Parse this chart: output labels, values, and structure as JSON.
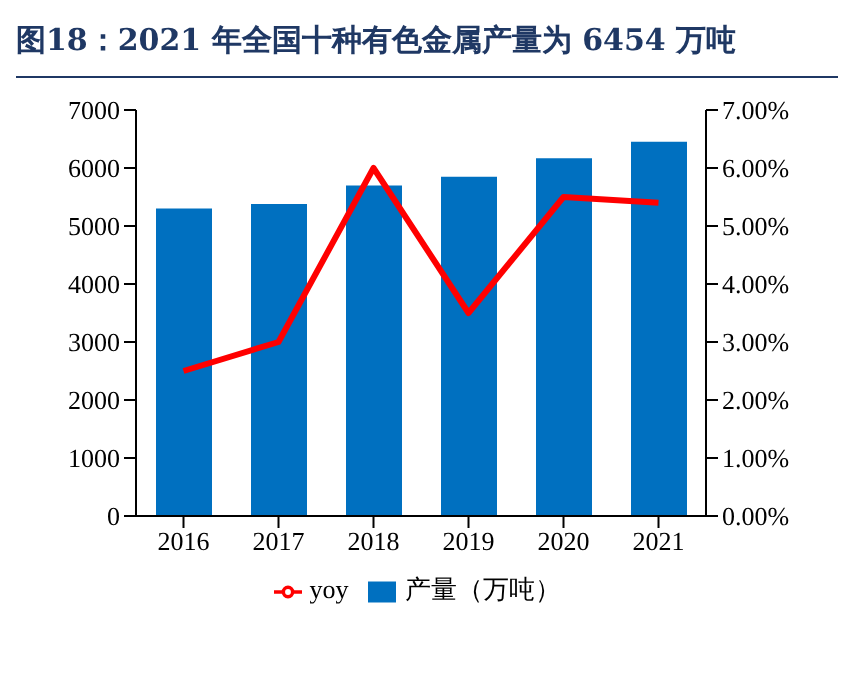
{
  "chart_data": {
    "type": "bar",
    "title": "图18：2021 年全国十种有色金属产量为 6454 万吨",
    "categories": [
      "2016",
      "2017",
      "2018",
      "2019",
      "2020",
      "2021"
    ],
    "series": [
      {
        "name": "产量（万吨）",
        "color": "#0070c0",
        "values": [
          5300,
          5380,
          5700,
          5850,
          6170,
          6454
        ]
      },
      {
        "name": "yoy",
        "type": "line",
        "axis": "y2",
        "color": "#ff0000",
        "values": [
          2.5,
          3.0,
          6.0,
          3.5,
          5.5,
          5.4
        ]
      }
    ],
    "ylim": [
      0,
      7000
    ],
    "yticks": [
      0,
      1000,
      2000,
      3000,
      4000,
      5000,
      6000,
      7000
    ],
    "y2lim": [
      0,
      7
    ],
    "y2ticks": [
      {
        "value": 0,
        "label": "0.00%"
      },
      {
        "value": 1,
        "label": "1.00%"
      },
      {
        "value": 2,
        "label": "2.00%"
      },
      {
        "value": 3,
        "label": "3.00%"
      },
      {
        "value": 4,
        "label": "4.00%"
      },
      {
        "value": 5,
        "label": "5.00%"
      },
      {
        "value": 6,
        "label": "6.00%"
      },
      {
        "value": 7,
        "label": "7.00%"
      }
    ],
    "grid": false,
    "legend": "bottom",
    "marker": "none"
  }
}
